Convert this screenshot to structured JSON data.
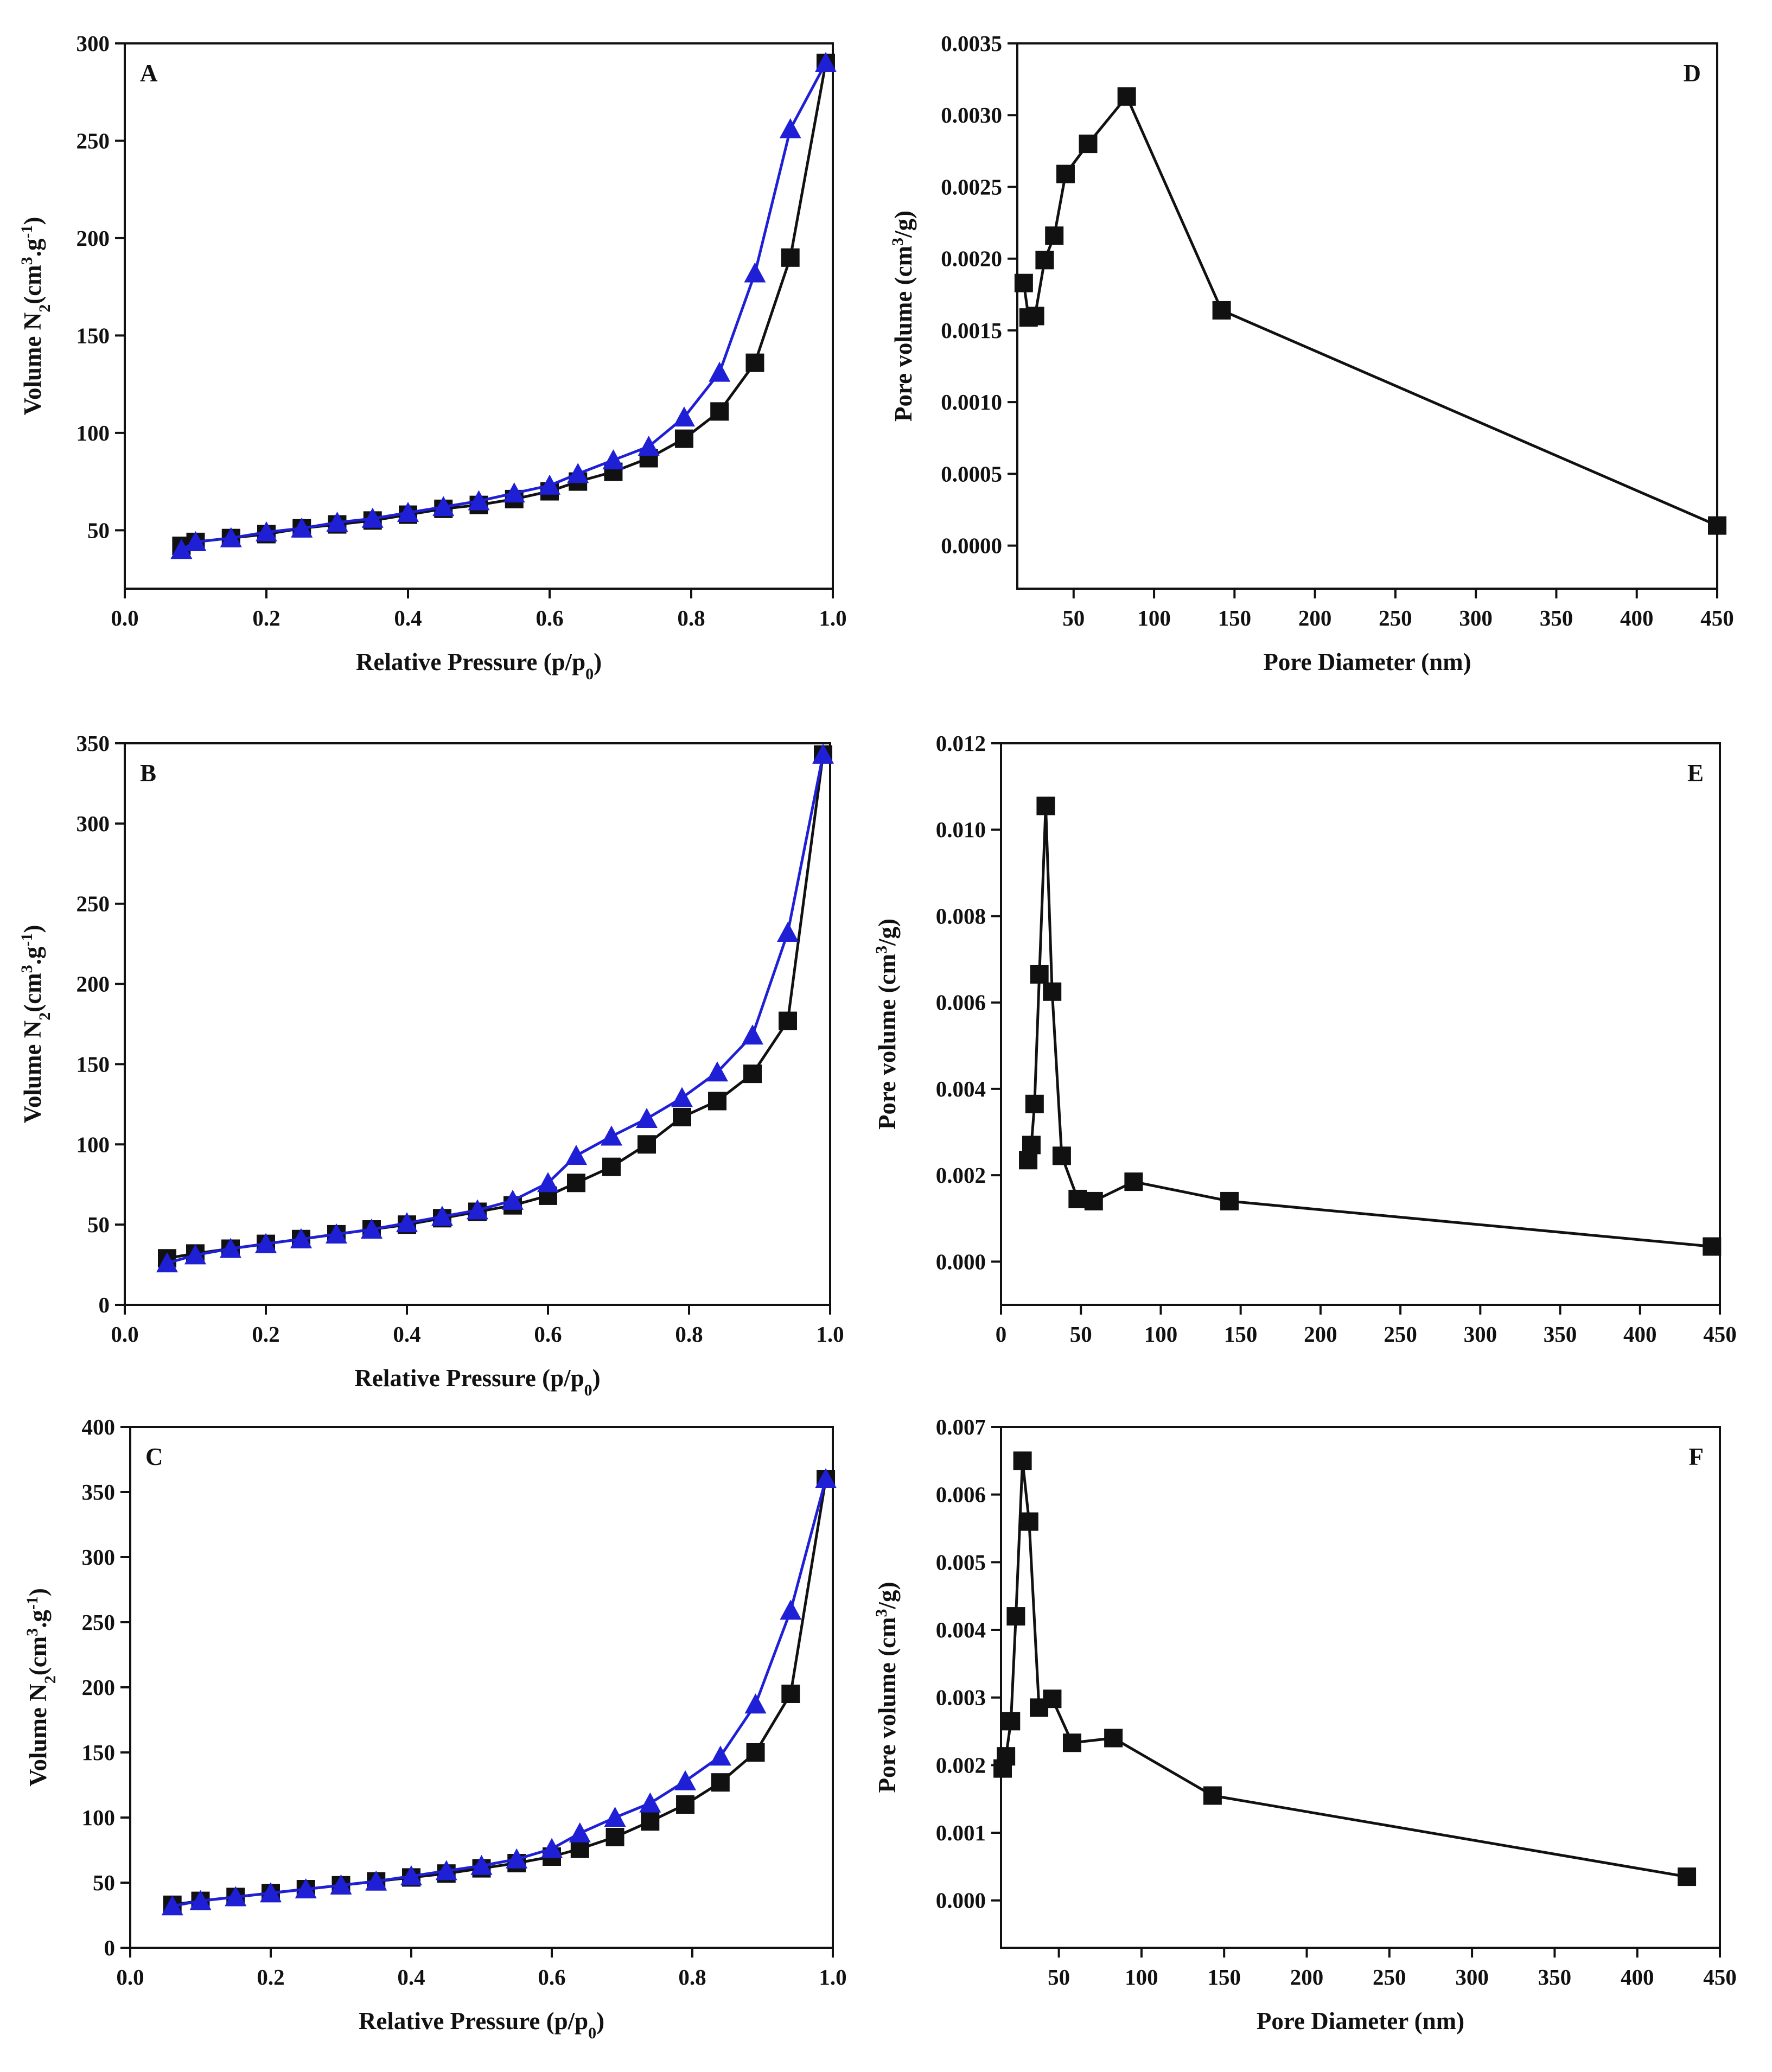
{
  "figure": {
    "description_title": "",
    "colors": {
      "adsorption": "#111111",
      "desorption": "#1f1fd6",
      "axis": "#111111"
    }
  },
  "chart_data": [
    {
      "id": "A",
      "type": "line",
      "panel_label": "A",
      "xlabel": {
        "main": "Relative Pressure (p/p",
        "sub": "0",
        "tail": ")"
      },
      "ylabel": {
        "a": "Volume N",
        "b": "2",
        "c": "(cm",
        "d": "3",
        "e": ".g",
        "f": "-1",
        "g": ")"
      },
      "xlim": [
        0,
        1.0
      ],
      "ylim": [
        20,
        300
      ],
      "xticks": [
        0.0,
        0.2,
        0.4,
        0.6,
        0.8,
        1.0
      ],
      "xtick_labels": [
        "0.0",
        "0.2",
        "0.4",
        "0.6",
        "0.8",
        "1.0"
      ],
      "yticks": [
        50,
        100,
        150,
        200,
        250,
        300
      ],
      "ytick_labels": [
        "50",
        "100",
        "150",
        "200",
        "250",
        "300"
      ],
      "series": [
        {
          "name": "adsorption",
          "marker": "square",
          "color": "#111111",
          "x": [
            0.08,
            0.1,
            0.15,
            0.2,
            0.25,
            0.3,
            0.35,
            0.4,
            0.45,
            0.5,
            0.55,
            0.6,
            0.64,
            0.69,
            0.74,
            0.79,
            0.84,
            0.89,
            0.94,
            0.99
          ],
          "y": [
            42,
            44,
            46,
            48,
            51,
            53,
            55,
            58,
            61,
            63,
            66,
            70,
            75,
            80,
            87,
            97,
            111,
            136,
            190,
            290
          ]
        },
        {
          "name": "desorption",
          "marker": "triangle",
          "color": "#1f1fd6",
          "x": [
            0.08,
            0.1,
            0.15,
            0.2,
            0.25,
            0.3,
            0.35,
            0.4,
            0.45,
            0.5,
            0.55,
            0.6,
            0.64,
            0.69,
            0.74,
            0.79,
            0.84,
            0.89,
            0.94,
            0.99
          ],
          "y": [
            40,
            44,
            46,
            49,
            51,
            54,
            56,
            59,
            62,
            65,
            69,
            73,
            79,
            86,
            93,
            108,
            131,
            182,
            256,
            290
          ]
        }
      ]
    },
    {
      "id": "D",
      "type": "line",
      "panel_label": "D",
      "xlabel": {
        "main": "Pore Diameter (nm)",
        "sub": "",
        "tail": ""
      },
      "ylabel": {
        "a": "Pore volume (cm",
        "b": "3",
        "c": "/g)"
      },
      "xlim": [
        15,
        450
      ],
      "ylim": [
        -0.0003,
        0.0035
      ],
      "xticks": [
        50,
        100,
        150,
        200,
        250,
        300,
        350,
        400,
        450
      ],
      "xtick_labels": [
        "50",
        "100",
        "150",
        "200",
        "250",
        "300",
        "350",
        "400",
        "450"
      ],
      "yticks": [
        0.0,
        0.0005,
        0.001,
        0.0015,
        0.002,
        0.0025,
        0.003,
        0.0035
      ],
      "ytick_labels": [
        "0.0000",
        "0.0005",
        "0.0010",
        "0.0015",
        "0.0020",
        "0.0025",
        "0.0030",
        "0.0035"
      ],
      "series": [
        {
          "name": "pore volume",
          "marker": "square",
          "color": "#111111",
          "x": [
            19,
            22,
            26,
            32,
            38,
            45,
            59,
            83,
            142,
            450
          ],
          "y": [
            0.00183,
            0.00159,
            0.0016,
            0.00199,
            0.00216,
            0.00259,
            0.0028,
            0.00313,
            0.00164,
            0.00014
          ]
        }
      ]
    },
    {
      "id": "B",
      "type": "line",
      "panel_label": "B",
      "xlabel": {
        "main": "Relative Pressure (p/p",
        "sub": "0",
        "tail": ")"
      },
      "ylabel": {
        "a": "Volume N",
        "b": "2",
        "c": "(cm",
        "d": "3",
        "e": ".g",
        "f": "-1",
        "g": ")"
      },
      "xlim": [
        0,
        1.0
      ],
      "ylim": [
        0,
        350
      ],
      "xticks": [
        0.0,
        0.2,
        0.4,
        0.6,
        0.8,
        1.0
      ],
      "xtick_labels": [
        "0.0",
        "0.2",
        "0.4",
        "0.6",
        "0.8",
        "1.0"
      ],
      "yticks": [
        0,
        50,
        100,
        150,
        200,
        250,
        300,
        350
      ],
      "ytick_labels": [
        "0",
        "50",
        "100",
        "150",
        "200",
        "250",
        "300",
        "350"
      ],
      "series": [
        {
          "name": "adsorption",
          "marker": "square",
          "color": "#111111",
          "x": [
            0.06,
            0.1,
            0.15,
            0.2,
            0.25,
            0.3,
            0.35,
            0.4,
            0.45,
            0.5,
            0.55,
            0.6,
            0.64,
            0.69,
            0.74,
            0.79,
            0.84,
            0.89,
            0.94,
            0.99
          ],
          "y": [
            29,
            32,
            35,
            38,
            41,
            44,
            47,
            50,
            54,
            58,
            62,
            68,
            76,
            86,
            100,
            117,
            127,
            144,
            177,
            343
          ]
        },
        {
          "name": "desorption",
          "marker": "triangle",
          "color": "#1f1fd6",
          "x": [
            0.06,
            0.1,
            0.15,
            0.2,
            0.25,
            0.3,
            0.35,
            0.4,
            0.45,
            0.5,
            0.55,
            0.6,
            0.64,
            0.69,
            0.74,
            0.79,
            0.84,
            0.89,
            0.94,
            0.99
          ],
          "y": [
            26,
            31,
            35,
            38,
            41,
            44,
            47,
            51,
            55,
            59,
            65,
            76,
            93,
            105,
            116,
            129,
            145,
            168,
            232,
            343
          ]
        }
      ]
    },
    {
      "id": "E",
      "type": "line",
      "panel_label": "E",
      "xlabel": {
        "main": "",
        "sub": "",
        "tail": ""
      },
      "ylabel": {
        "a": "Pore volume (cm",
        "b": "3",
        "c": "/g)"
      },
      "xlim": [
        0,
        450
      ],
      "ylim": [
        -0.001,
        0.012
      ],
      "xticks": [
        0,
        50,
        100,
        150,
        200,
        250,
        300,
        350,
        400,
        450
      ],
      "xtick_labels": [
        "0",
        "50",
        "100",
        "150",
        "200",
        "250",
        "300",
        "350",
        "400",
        "450"
      ],
      "yticks": [
        0.0,
        0.002,
        0.004,
        0.006,
        0.008,
        0.01,
        0.012
      ],
      "ytick_labels": [
        "0.000",
        "0.002",
        "0.004",
        "0.006",
        "0.008",
        "0.010",
        "0.012"
      ],
      "series": [
        {
          "name": "pore volume",
          "marker": "square",
          "color": "#111111",
          "x": [
            17,
            19,
            21,
            24,
            28,
            32,
            38,
            48,
            58,
            83,
            143,
            445
          ],
          "y": [
            0.00235,
            0.0027,
            0.00365,
            0.00665,
            0.01055,
            0.00625,
            0.00245,
            0.00145,
            0.0014,
            0.00185,
            0.0014,
            0.00035
          ]
        }
      ]
    },
    {
      "id": "C",
      "type": "line",
      "panel_label": "C",
      "xlabel": {
        "main": "Relative Pressure (p/p",
        "sub": "0",
        "tail": ")"
      },
      "ylabel": {
        "a": "Volume N",
        "b": "2",
        "c": "(cm",
        "d": "3",
        "e": ".g",
        "f": "-1",
        "g": ")"
      },
      "xlim": [
        0,
        1.0
      ],
      "ylim": [
        0,
        400
      ],
      "xticks": [
        0.0,
        0.2,
        0.4,
        0.6,
        0.8,
        1.0
      ],
      "xtick_labels": [
        "0.0",
        "0.2",
        "0.4",
        "0.6",
        "0.8",
        "1.0"
      ],
      "yticks": [
        0,
        50,
        100,
        150,
        200,
        250,
        300,
        350,
        400
      ],
      "ytick_labels": [
        "0",
        "50",
        "100",
        "150",
        "200",
        "250",
        "300",
        "350",
        "400"
      ],
      "series": [
        {
          "name": "adsorption",
          "marker": "square",
          "color": "#111111",
          "x": [
            0.06,
            0.1,
            0.15,
            0.2,
            0.25,
            0.3,
            0.35,
            0.4,
            0.45,
            0.5,
            0.55,
            0.6,
            0.64,
            0.69,
            0.74,
            0.79,
            0.84,
            0.89,
            0.94,
            0.99
          ],
          "y": [
            33,
            36,
            39,
            42,
            45,
            48,
            51,
            54,
            57,
            61,
            65,
            70,
            76,
            85,
            97,
            110,
            127,
            150,
            195,
            360
          ]
        },
        {
          "name": "desorption",
          "marker": "triangle",
          "color": "#1f1fd6",
          "x": [
            0.06,
            0.1,
            0.15,
            0.2,
            0.25,
            0.3,
            0.35,
            0.4,
            0.45,
            0.5,
            0.55,
            0.6,
            0.64,
            0.69,
            0.74,
            0.79,
            0.84,
            0.89,
            0.94,
            0.99
          ],
          "y": [
            32,
            36,
            39,
            42,
            45,
            48,
            51,
            55,
            59,
            63,
            68,
            76,
            88,
            100,
            111,
            128,
            147,
            187,
            259,
            360
          ]
        }
      ]
    },
    {
      "id": "F",
      "type": "line",
      "panel_label": "F",
      "xlabel": {
        "main": "Pore Diameter (nm)",
        "sub": "",
        "tail": ""
      },
      "ylabel": {
        "a": "Pore volume (cm",
        "b": "3",
        "c": "/g)"
      },
      "xlim": [
        15,
        450
      ],
      "ylim": [
        -0.0007,
        0.007
      ],
      "xticks": [
        50,
        100,
        150,
        200,
        250,
        300,
        350,
        400,
        450
      ],
      "xtick_labels": [
        "50",
        "100",
        "150",
        "200",
        "250",
        "300",
        "350",
        "400",
        "450"
      ],
      "yticks": [
        0.0,
        0.001,
        0.002,
        0.003,
        0.004,
        0.005,
        0.006,
        0.007
      ],
      "ytick_labels": [
        "0.000",
        "0.001",
        "0.002",
        "0.003",
        "0.004",
        "0.005",
        "0.006",
        "0.007"
      ],
      "series": [
        {
          "name": "pore volume",
          "marker": "square",
          "color": "#111111",
          "x": [
            16,
            18,
            21,
            24,
            28,
            32,
            38,
            46,
            58,
            83,
            143,
            430
          ],
          "y": [
            0.00195,
            0.00213,
            0.00265,
            0.0042,
            0.0065,
            0.0056,
            0.00285,
            0.00298,
            0.00233,
            0.0024,
            0.00155,
            0.00035
          ]
        }
      ]
    }
  ]
}
